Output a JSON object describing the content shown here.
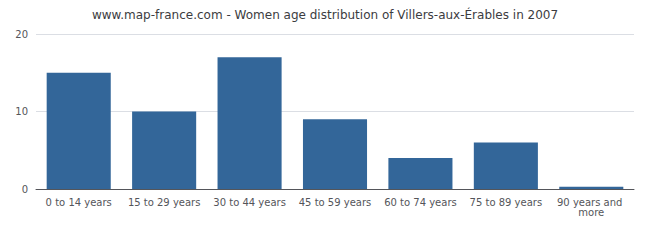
{
  "chart_data": {
    "type": "bar",
    "title": "www.map-france.com - Women age distribution of Villers-aux-Érables in 2007",
    "categories": [
      "0 to 14 years",
      "15 to 29 years",
      "30 to 44 years",
      "45 to 59 years",
      "60 to 74 years",
      "75 to 89 years",
      "90 years and more"
    ],
    "values": [
      15,
      10,
      17,
      9,
      4,
      6,
      0.3
    ],
    "color": "#336699",
    "ylim": [
      0,
      20
    ],
    "yticks": [
      0,
      10,
      20
    ],
    "grid": true
  }
}
